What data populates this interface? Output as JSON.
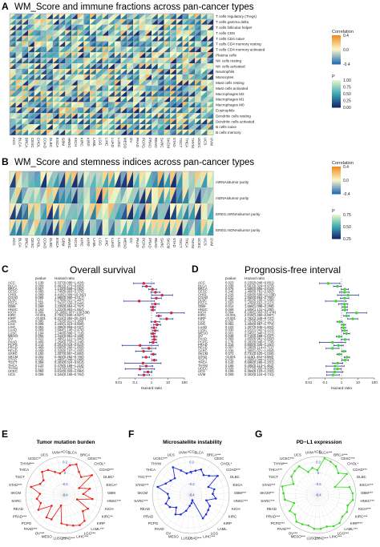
{
  "panelA": {
    "letter": "A",
    "title": "WM_Score and immune fractions across pan-cancer types",
    "rows": [
      "T cells regulatory (Tregs)",
      "T cells gamma delta",
      "T cells follicular helper",
      "T cells CD8",
      "T cells CD4 naive",
      "T cells CD4 memory resting",
      "T cells CD4 memory activated",
      "Plasma cells",
      "NK cells resting",
      "NK cells activated",
      "Neutrophils",
      "Monocytes",
      "Mast cells resting",
      "Mast cells activated",
      "Macrophages M2",
      "Macrophages M1",
      "Macrophages M0",
      "Eosinophils",
      "Dendritic cells resting",
      "Dendritic cells activated",
      "B cells naive",
      "B cells memory"
    ],
    "legend_corr_title": "Correlation",
    "legend_corr_ticks": [
      "0.4",
      "0.0",
      "-0.4"
    ],
    "legend_p_title": "P",
    "legend_p_ticks": [
      "1.00",
      "0.75",
      "0.50",
      "0.25",
      "0.00"
    ]
  },
  "cancers33": [
    "ACC",
    "BLCA",
    "BRCA",
    "CESC",
    "CHOL",
    "COAD",
    "DLBC",
    "ESCA",
    "GBM",
    "HNSC",
    "KICH",
    "KIRC",
    "KIRP",
    "LAML",
    "LGG",
    "LIHC",
    "LUAD",
    "LUSC",
    "MESO",
    "OV",
    "PAAD",
    "PCPG",
    "PRAD",
    "READ",
    "SARC",
    "SKCM",
    "STAD",
    "TGCT",
    "THCA",
    "THYM",
    "UCEC",
    "UCS",
    "UVM"
  ],
  "panelB": {
    "letter": "B",
    "title": "WM_Score and stemness indices across pan-cancer types",
    "rows": [
      "mRNAsitumor purity",
      "mDNAsitumor purity",
      "EREG.mRNAsitumor purity",
      "EREG.mDNAsitumor purity"
    ],
    "legend_corr_title": "Correlation",
    "legend_corr_ticks": [
      "0.4",
      "0.0",
      "-0.4"
    ],
    "legend_p_title": "P",
    "legend_p_ticks": [
      "0.75",
      "0.50",
      "0.25"
    ]
  },
  "panelC": {
    "letter": "C",
    "title": "Overall survival",
    "col_pvalue": "pvalue",
    "col_hr": "Hazard ratio",
    "xlabel": "Hazard ratio",
    "xticks": [
      "0.01",
      "0.1",
      "1",
      "10",
      "100"
    ],
    "rows": [
      {
        "name": "ACC",
        "p": "0.139",
        "hr": "0.337(0.080~1.424)",
        "v": 0.337,
        "lo": 0.08,
        "hi": 1.424
      },
      {
        "name": "BLCA",
        "p": "0.009",
        "hr": "0.491(0.273~0.883)",
        "v": 0.491,
        "lo": 0.273,
        "hi": 0.883
      },
      {
        "name": "BRCA",
        "p": "0.557",
        "hr": "1.143(0.669~2.052)",
        "v": 1.143,
        "lo": 0.669,
        "hi": 2.052
      },
      {
        "name": "CESC",
        "p": "0.095",
        "hr": "1.745(0.903~3.370)",
        "v": 1.745,
        "lo": 0.903,
        "hi": 3.37
      },
      {
        "name": "CHOL",
        "p": "0.099",
        "hr": "4.416(1.009~19.342)",
        "v": 4.416,
        "lo": 1.009,
        "hi": 19.342
      },
      {
        "name": "COAD",
        "p": "0.065",
        "hr": "1.965(0.960~4.017)",
        "v": 1.965,
        "lo": 0.96,
        "hi": 4.017
      },
      {
        "name": "DLBC",
        "p": "0.111",
        "hr": "0.178(0.021~1.487)",
        "v": 0.178,
        "lo": 0.021,
        "hi": 1.487
      },
      {
        "name": "ESCA",
        "p": "0.260",
        "hr": "1.702(1.020~2.840)",
        "v": 1.702,
        "lo": 1.02,
        "hi": 2.84
      },
      {
        "name": "GBM",
        "p": "0.269",
        "hr": "1.225(0.854~1.757)",
        "v": 1.225,
        "lo": 0.854,
        "hi": 1.757
      },
      {
        "name": "HNSC",
        "p": "0.193",
        "hr": "1.222(0.903~1.654)",
        "v": 1.222,
        "lo": 0.903,
        "hi": 1.654
      },
      {
        "name": "KICH",
        "p": "0.009",
        "hr": "16.186(2.007~130.538)",
        "v": 16.186,
        "lo": 2.007,
        "hi": 130.538
      },
      {
        "name": "KIRC",
        "p": "<0.001",
        "hr": "2.753(1.930~3.927)",
        "v": 2.753,
        "lo": 1.93,
        "hi": 3.927
      },
      {
        "name": "KIRP",
        "p": "<0.001",
        "hr": "8.314(3.384~20.424)",
        "v": 8.314,
        "lo": 3.384,
        "hi": 20.424
      },
      {
        "name": "LAML",
        "p": "0.095",
        "hr": "1.702(0.911~3.180)",
        "v": 1.702,
        "lo": 0.911,
        "hi": 3.18
      },
      {
        "name": "LGG",
        "p": "0.005",
        "hr": "2.192(1.313~3.660)",
        "v": 2.192,
        "lo": 1.313,
        "hi": 3.66
      },
      {
        "name": "LIHC",
        "p": "0.081",
        "hr": "1.398(0.959~2.037)",
        "v": 1.398,
        "lo": 0.959,
        "hi": 2.037
      },
      {
        "name": "LUAD",
        "p": "0.009",
        "hr": "1.684(1.145~2.476)",
        "v": 1.684,
        "lo": 1.145,
        "hi": 2.476
      },
      {
        "name": "LUSC",
        "p": "0.194",
        "hr": "1.240(0.896~1.716)",
        "v": 1.24,
        "lo": 0.896,
        "hi": 1.716
      },
      {
        "name": "MESO",
        "p": "0.005",
        "hr": "1.444(0.961~2.169)",
        "v": 1.444,
        "lo": 0.961,
        "hi": 2.169
      },
      {
        "name": "OV",
        "p": "0.022",
        "hr": "1.495(1.121~1.993)",
        "v": 1.495,
        "lo": 1.121,
        "hi": 1.993
      },
      {
        "name": "PAAD",
        "p": "0.409",
        "hr": "1.254(0.733~2.146)",
        "v": 1.254,
        "lo": 0.733,
        "hi": 2.146
      },
      {
        "name": "PCPG",
        "p": "0.214",
        "hr": "0.201(0.016~2.523)",
        "v": 0.201,
        "lo": 0.016,
        "hi": 2.523
      },
      {
        "name": "PRAD",
        "p": "0.469",
        "hr": "0.695(0.260~1.859)",
        "v": 0.695,
        "lo": 0.26,
        "hi": 1.859
      },
      {
        "name": "READ",
        "p": "0.058",
        "hr": "0.328(0.107~1.005)",
        "v": 0.328,
        "lo": 0.107,
        "hi": 1.005
      },
      {
        "name": "SARC",
        "p": "0.150",
        "hr": "1.307(0.907~1.884)",
        "v": 1.307,
        "lo": 0.907,
        "hi": 1.884
      },
      {
        "name": "SKCM",
        "p": "0.002",
        "hr": "0.463(0.282~0.760)",
        "v": 0.463,
        "lo": 0.282,
        "hi": 0.76
      },
      {
        "name": "STAD",
        "p": "0.026",
        "hr": "1.480(1.049~2.089)",
        "v": 1.48,
        "lo": 1.049,
        "hi": 2.089
      },
      {
        "name": "TGCT",
        "p": "0.356",
        "hr": "0.303(0.024~3.814)",
        "v": 0.303,
        "lo": 0.024,
        "hi": 3.814
      },
      {
        "name": "THCA",
        "p": "0.122",
        "hr": "0.479(0.189~1.216)",
        "v": 0.479,
        "lo": 0.189,
        "hi": 1.216
      },
      {
        "name": "THYM",
        "p": "0.121",
        "hr": "0.197(0.025~1.537)",
        "v": 0.197,
        "lo": 0.025,
        "hi": 1.537
      },
      {
        "name": "UCEC",
        "p": "0.092",
        "hr": "0.610(0.343~1.084)",
        "v": 0.61,
        "lo": 0.343,
        "hi": 1.084
      },
      {
        "name": "UCS",
        "p": "0.006",
        "hr": "0.344(0.155~0.764)",
        "v": 0.344,
        "lo": 0.155,
        "hi": 0.764
      }
    ]
  },
  "panelD": {
    "letter": "D",
    "title": "Prognosis-free interval",
    "col_pvalue": "pvalue",
    "col_hr": "Hazard ratio",
    "xlabel": "Hazard ratio",
    "xticks": [
      "0.01",
      "0.1",
      "1",
      "10",
      "100"
    ],
    "rows": [
      {
        "name": "ACC",
        "p": "0.023",
        "hr": "0.155(0.046~0.801)",
        "v": 0.155,
        "lo": 0.046,
        "hi": 0.801
      },
      {
        "name": "BLCA",
        "p": "0.038",
        "hr": "0.561(0.324~0.970)",
        "v": 0.561,
        "lo": 0.324,
        "hi": 0.97
      },
      {
        "name": "BRCA",
        "p": "0.075",
        "hr": "1.586(0.955~2.633)",
        "v": 1.586,
        "lo": 0.955,
        "hi": 2.633
      },
      {
        "name": "CESC",
        "p": "0.246",
        "hr": "1.486(0.761~2.902)",
        "v": 1.486,
        "lo": 0.761,
        "hi": 2.902
      },
      {
        "name": "CHOL",
        "p": "0.226",
        "hr": "2.500(0.566~11.036)",
        "v": 2.5,
        "lo": 0.566,
        "hi": 11.036
      },
      {
        "name": "COAD",
        "p": "0.141",
        "hr": "1.550(0.864~2.780)",
        "v": 1.55,
        "lo": 0.864,
        "hi": 2.78
      },
      {
        "name": "DLBC",
        "p": "0.285",
        "hr": "0.452(0.105~1.938)",
        "v": 0.452,
        "lo": 0.105,
        "hi": 1.938
      },
      {
        "name": "ESCA",
        "p": "0.597",
        "hr": "1.476(0.652~2.421)",
        "v": 1.476,
        "lo": 0.652,
        "hi": 2.421
      },
      {
        "name": "GBM",
        "p": "0.014",
        "hr": "1.588(1.098~2.298)",
        "v": 1.588,
        "lo": 1.098,
        "hi": 2.298
      },
      {
        "name": "HNSC",
        "p": "0.008",
        "hr": "1.609(1.131~2.290)",
        "v": 1.609,
        "lo": 1.131,
        "hi": 2.29
      },
      {
        "name": "KICH",
        "p": "0.004",
        "hr": "8.188(2.003~33.474)",
        "v": 8.188,
        "lo": 2.003,
        "hi": 33.474
      },
      {
        "name": "KIRC",
        "p": "<0.001",
        "hr": "2.019(1.360~2.997)",
        "v": 2.019,
        "lo": 1.36,
        "hi": 2.997
      },
      {
        "name": "KIRP",
        "p": "<0.001",
        "hr": "4.782(2.348~9.737)",
        "v": 4.782,
        "lo": 2.348,
        "hi": 9.737
      },
      {
        "name": "LGG",
        "p": "0.025",
        "hr": "0.767(0.522~1.127)",
        "v": 0.767,
        "lo": 0.522,
        "hi": 1.127
      },
      {
        "name": "LIHC",
        "p": "0.081",
        "hr": "1.309(0.967~1.773)",
        "v": 1.309,
        "lo": 0.967,
        "hi": 1.773
      },
      {
        "name": "LUAD",
        "p": "0.102",
        "hr": "1.307(0.948~1.802)",
        "v": 1.307,
        "lo": 0.948,
        "hi": 1.802
      },
      {
        "name": "LUSC",
        "p": "0.030",
        "hr": "1.522(1.042~2.223)",
        "v": 1.522,
        "lo": 1.042,
        "hi": 2.223
      },
      {
        "name": "MESO",
        "p": "0.001",
        "hr": "2.045(1.340~3.121)",
        "v": 2.045,
        "lo": 1.34,
        "hi": 3.121
      },
      {
        "name": "OV",
        "p": "0.048",
        "hr": "0.715(0.488~1.047)",
        "v": 0.715,
        "lo": 0.488,
        "hi": 1.047
      },
      {
        "name": "PAAD",
        "p": "0.069",
        "hr": "1.655(0.961~2.850)",
        "v": 1.655,
        "lo": 0.961,
        "hi": 2.85
      },
      {
        "name": "PCPG",
        "p": "0.178",
        "hr": "0.282(0.045~1.778)",
        "v": 0.282,
        "lo": 0.045,
        "hi": 1.778
      },
      {
        "name": "PRAD",
        "p": "0.216",
        "hr": "0.655(0.335~1.281)",
        "v": 0.655,
        "lo": 0.335,
        "hi": 1.281
      },
      {
        "name": "READ",
        "p": "0.007",
        "hr": "0.285(0.114~0.711)",
        "v": 0.285,
        "lo": 0.114,
        "hi": 0.711
      },
      {
        "name": "SARC",
        "p": "0.036",
        "hr": "1.380(1.021~1.864)",
        "v": 1.38,
        "lo": 1.021,
        "hi": 1.864
      },
      {
        "name": "SKCM",
        "p": "0.072",
        "hr": "0.731(0.520~1.028)",
        "v": 0.731,
        "lo": 0.52,
        "hi": 1.028
      },
      {
        "name": "STAD",
        "p": "<0.001",
        "hr": "2.115(1.452~3.080)",
        "v": 2.115,
        "lo": 1.452,
        "hi": 3.08
      },
      {
        "name": "TGCT",
        "p": "0.032",
        "hr": "1.658(1.044~2.633)",
        "v": 1.658,
        "lo": 1.044,
        "hi": 2.633
      },
      {
        "name": "THCA",
        "p": "0.144",
        "hr": "0.585(0.285~1.201)",
        "v": 0.585,
        "lo": 0.285,
        "hi": 1.201
      },
      {
        "name": "THYM",
        "p": "0.166",
        "hr": "0.405(0.113~1.452)",
        "v": 0.405,
        "lo": 0.113,
        "hi": 1.452
      },
      {
        "name": "UCEC",
        "p": "0.026",
        "hr": "0.577(0.355~0.938)",
        "v": 0.577,
        "lo": 0.355,
        "hi": 0.938
      },
      {
        "name": "UCS",
        "p": "0.109",
        "hr": "0.389(0.123~1.232)",
        "v": 0.389,
        "lo": 0.123,
        "hi": 1.232
      },
      {
        "name": "UVM",
        "p": "0.009",
        "hr": "0.303(0.124~0.741)",
        "v": 0.303,
        "lo": 0.124,
        "hi": 0.741
      }
    ]
  },
  "panelE": {
    "letter": "E",
    "title": "Tumor mutation burden",
    "color": "#e8261f",
    "rings": [
      "0.2",
      "0",
      "-0.2",
      "-0.4"
    ],
    "labels": [
      "ACC",
      "BLCA",
      "BRCA",
      "CESC***",
      "CHOL*",
      "COAD***",
      "DLBC*",
      "ESCA*",
      "GBM",
      "HNSC***",
      "KICH",
      "KIRC**",
      "KIRP",
      "LAML***",
      "LGG***",
      "LIHC***",
      "LUAD***",
      "LUSC***",
      "MESO",
      "OV***",
      "PAAD***",
      "PCPG",
      "PRAD***",
      "READ",
      "SARC",
      "SKCM",
      "STAD***",
      "TGCT",
      "THCA",
      "THYM***",
      "UCEC**",
      "UCS",
      "UVM"
    ],
    "values": [
      0.05,
      0.15,
      0.2,
      0.1,
      0.05,
      0.22,
      -0.1,
      0.08,
      -0.05,
      0.12,
      -0.15,
      0.1,
      0.05,
      0.2,
      0.22,
      0.18,
      0.15,
      0.12,
      -0.2,
      0.1,
      0.12,
      -0.1,
      0.14,
      0.05,
      0.1,
      0.04,
      0.22,
      0.08,
      0.06,
      0.18,
      0.14,
      0.05,
      0.0
    ]
  },
  "panelF": {
    "letter": "F",
    "title": "Microsatellite instability",
    "color": "#1f2fd6",
    "rings": [
      "0.2",
      "0",
      "-0.2",
      "-0.4"
    ],
    "labels": [
      "ACC",
      "BLCA",
      "BRCA***",
      "CESC",
      "CHOL*",
      "COAD***",
      "DLBC",
      "ESCA",
      "GBM***",
      "HNSC***",
      "KICH",
      "KIRC",
      "KIRP",
      "LAML",
      "LGG",
      "LIHC***",
      "LUAD***",
      "LUSC*",
      "MESO",
      "OV",
      "PAAD",
      "PCPG",
      "PRAD",
      "READ",
      "SARC***",
      "SKCM",
      "STAD***",
      "TGCT***",
      "THCA",
      "THYM",
      "UCEC***",
      "UCS",
      "UVM"
    ],
    "values": [
      0.02,
      0.05,
      0.1,
      0.03,
      0.08,
      0.2,
      -0.05,
      0.04,
      0.0,
      0.06,
      -0.1,
      0.0,
      0.02,
      0.05,
      0.08,
      -0.3,
      -0.25,
      -0.2,
      -0.1,
      0.0,
      0.05,
      -0.05,
      0.04,
      0.08,
      0.0,
      0.02,
      0.22,
      0.1,
      0.05,
      0.02,
      0.2,
      0.08,
      0.0
    ]
  },
  "panelG": {
    "letter": "G",
    "title": "PD−L1 expression",
    "color": "#3fd92a",
    "rings": [
      "0.2",
      "0",
      "-0.2",
      "-0.4"
    ],
    "labels": [
      "ACC",
      "BLCA***",
      "BRCA***",
      "CESC***",
      "CHOL*",
      "COAD***",
      "DLBC",
      "ESCA***",
      "GBM***",
      "HNSC***",
      "KICH***",
      "KIRC***",
      "KIRP***",
      "LAML***",
      "LGG***",
      "LIHC***",
      "LUAD***",
      "LUSC***",
      "MESO***",
      "OV***",
      "PAAD***",
      "PCPG***",
      "PRAD***",
      "READ",
      "SARC***",
      "SKCM***",
      "STAD***",
      "TGCT",
      "THCA***",
      "THYM***",
      "UCEC***",
      "UCS",
      "UVM"
    ],
    "values": [
      0.05,
      0.28,
      0.25,
      0.22,
      0.15,
      0.26,
      -0.05,
      0.2,
      0.24,
      0.25,
      0.18,
      0.22,
      0.2,
      0.25,
      0.24,
      0.2,
      0.22,
      0.22,
      0.18,
      0.2,
      0.22,
      0.14,
      0.18,
      0.05,
      0.2,
      0.22,
      0.26,
      0.08,
      0.18,
      0.2,
      0.22,
      0.05,
      0.1
    ]
  }
}
